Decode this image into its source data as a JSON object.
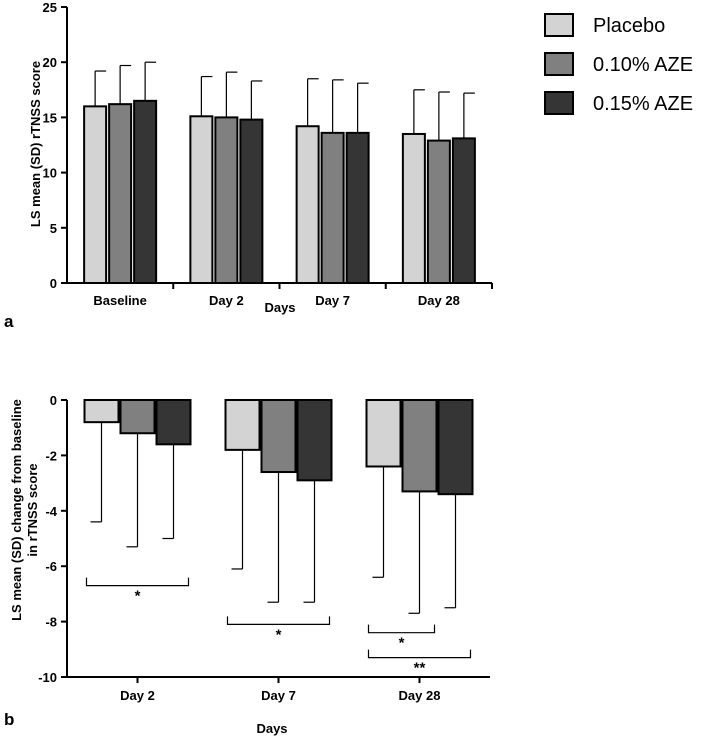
{
  "chart_data": [
    {
      "type": "bar",
      "panel_label": "a",
      "categories": [
        "Baseline",
        "Day 2",
        "Day 7",
        "Day 28"
      ],
      "series": [
        {
          "name": "Placebo",
          "values": [
            16.0,
            15.1,
            14.2,
            13.5
          ],
          "sd": [
            3.2,
            3.6,
            4.3,
            4.0
          ]
        },
        {
          "name": "0.10% AZE",
          "values": [
            16.2,
            15.0,
            13.6,
            12.9
          ],
          "sd": [
            3.5,
            4.1,
            4.8,
            4.4
          ]
        },
        {
          "name": "0.15% AZE",
          "values": [
            16.5,
            14.8,
            13.6,
            13.1
          ],
          "sd": [
            3.5,
            3.5,
            4.5,
            4.1
          ]
        }
      ],
      "xlabel": "Days",
      "ylabel": "LS mean (SD)  rTNSS score",
      "ylim": [
        0,
        25
      ],
      "yticks": [
        "0",
        "5",
        "10",
        "15",
        "20",
        "25"
      ]
    },
    {
      "type": "bar",
      "panel_label": "b",
      "categories": [
        "Day 2",
        "Day 7",
        "Day 28"
      ],
      "series": [
        {
          "name": "Placebo",
          "values": [
            -0.8,
            -1.8,
            -2.4
          ],
          "sd": [
            3.6,
            4.3,
            4.0
          ]
        },
        {
          "name": "0.10% AZE",
          "values": [
            -1.2,
            -2.6,
            -3.3
          ],
          "sd": [
            4.1,
            4.7,
            4.4
          ]
        },
        {
          "name": "0.15% AZE",
          "values": [
            -1.6,
            -2.9,
            -3.4
          ],
          "sd": [
            3.4,
            4.4,
            4.1
          ]
        }
      ],
      "xlabel": "Days",
      "ylabel": "LS mean (SD) change from baseline in rTNSS score",
      "ylabel_lines": [
        "LS mean (SD) change from baseline",
        "in rTNSS score"
      ],
      "ylim": [
        -10,
        0
      ],
      "yticks": [
        "0",
        "-2",
        "-4",
        "-6",
        "-8",
        "-10"
      ],
      "annotations": [
        {
          "text": "*",
          "category": "Day 2",
          "from_series": 0,
          "to_series": 2,
          "level": -6.7
        },
        {
          "text": "*",
          "category": "Day 7",
          "from_series": 0,
          "to_series": 2,
          "level": -8.1
        },
        {
          "text": "*",
          "category": "Day 28",
          "from_series": 0,
          "to_series": 1,
          "level": -8.4
        },
        {
          "text": "**",
          "category": "Day 28",
          "from_series": 0,
          "to_series": 2,
          "level": -9.3
        }
      ]
    }
  ],
  "legend": {
    "position": "top-right",
    "entries": [
      {
        "label": "Placebo",
        "color": "#d3d3d3"
      },
      {
        "label": "0.10% AZE",
        "color": "#808080"
      },
      {
        "label": "0.15% AZE",
        "color": "#353535"
      }
    ]
  },
  "colors": [
    "#d3d3d3",
    "#808080",
    "#353535"
  ]
}
